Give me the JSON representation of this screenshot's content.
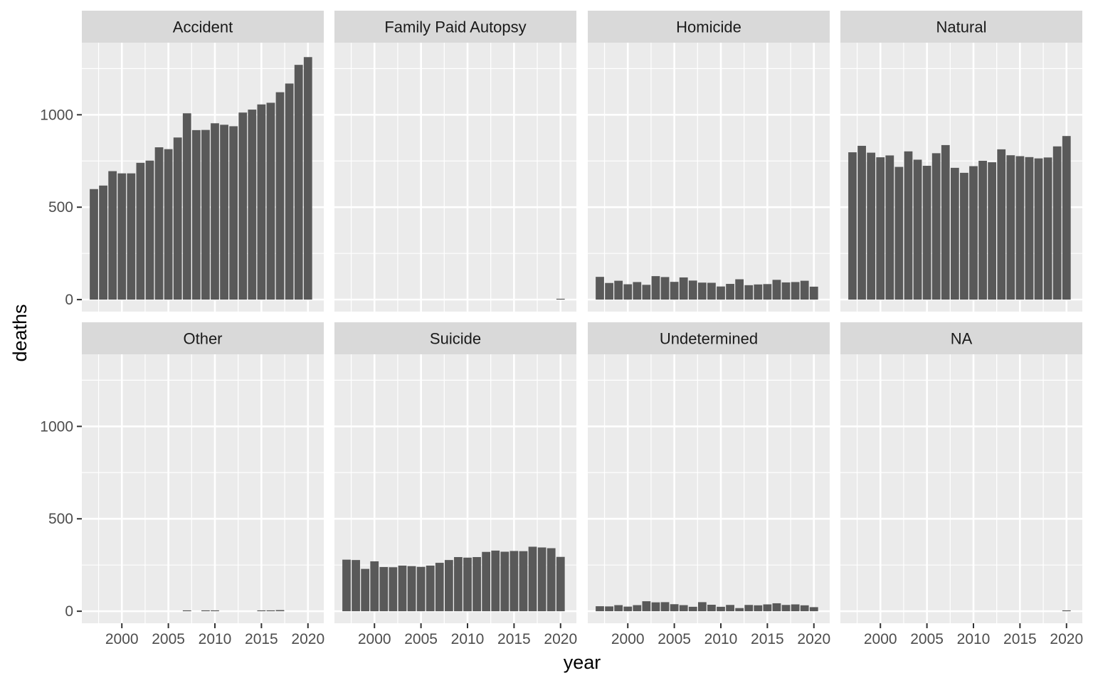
{
  "chart_data": {
    "type": "bar",
    "layout": "facet_wrap, 2 rows x 4 columns, shared axes",
    "xlabel": "year",
    "ylabel": "deaths",
    "x_ticks": [
      2000,
      2005,
      2010,
      2015,
      2020
    ],
    "y_ticks": [
      0,
      500,
      1000
    ],
    "xlim": [
      1995.7,
      2021.7
    ],
    "ylim": [
      -65,
      1390
    ],
    "grid": true,
    "bar_color": "#595959",
    "panel_background": "#ebebeb",
    "strip_background": "#d9d9d9",
    "x": [
      1997,
      1998,
      1999,
      2000,
      2001,
      2002,
      2003,
      2004,
      2005,
      2006,
      2007,
      2008,
      2009,
      2010,
      2011,
      2012,
      2013,
      2014,
      2015,
      2016,
      2017,
      2018,
      2019,
      2020
    ],
    "series": [
      {
        "name": "Accident",
        "values": [
          598,
          617,
          695,
          683,
          683,
          740,
          752,
          824,
          814,
          877,
          1008,
          917,
          918,
          954,
          946,
          938,
          1012,
          1028,
          1056,
          1065,
          1122,
          1169,
          1270,
          1312
        ]
      },
      {
        "name": "Family Paid Autopsy",
        "values": [
          0,
          0,
          0,
          0,
          0,
          0,
          0,
          0,
          0,
          0,
          0,
          0,
          0,
          0,
          0,
          0,
          0,
          0,
          0,
          0,
          0,
          0,
          0,
          3
        ]
      },
      {
        "name": "Homicide",
        "values": [
          123,
          90,
          102,
          83,
          95,
          80,
          127,
          122,
          96,
          120,
          103,
          92,
          91,
          71,
          85,
          110,
          78,
          82,
          84,
          107,
          93,
          95,
          102,
          70
        ]
      },
      {
        "name": "Natural",
        "values": [
          797,
          832,
          795,
          770,
          780,
          718,
          802,
          757,
          724,
          792,
          836,
          713,
          686,
          722,
          751,
          743,
          813,
          781,
          776,
          771,
          764,
          769,
          829,
          885
        ]
      },
      {
        "name": "Other",
        "values": [
          0,
          0,
          0,
          0,
          0,
          0,
          0,
          0,
          0,
          0,
          3,
          0,
          2,
          4,
          0,
          0,
          0,
          0,
          3,
          4,
          6,
          0,
          0,
          0
        ]
      },
      {
        "name": "Suicide",
        "values": [
          279,
          277,
          229,
          270,
          239,
          238,
          247,
          244,
          240,
          247,
          262,
          277,
          293,
          290,
          293,
          321,
          328,
          322,
          326,
          325,
          349,
          345,
          341,
          294
        ]
      },
      {
        "name": "Undetermined",
        "values": [
          27,
          26,
          33,
          25,
          33,
          54,
          48,
          49,
          38,
          33,
          24,
          49,
          35,
          24,
          34,
          17,
          34,
          32,
          37,
          43,
          34,
          37,
          32,
          22
        ]
      },
      {
        "name": "NA",
        "values": [
          0,
          0,
          0,
          0,
          0,
          0,
          0,
          0,
          0,
          0,
          0,
          0,
          0,
          0,
          0,
          0,
          0,
          0,
          0,
          0,
          0,
          0,
          0,
          3
        ]
      }
    ]
  }
}
